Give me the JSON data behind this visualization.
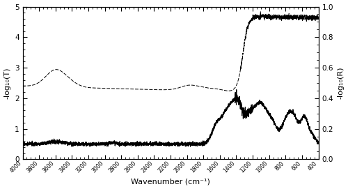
{
  "xlim": [
    4000,
    400
  ],
  "ylim_left": [
    0,
    5
  ],
  "ylim_right": [
    0,
    1
  ],
  "xlabel": "Wavenumber (cm⁻¹)",
  "ylabel_left": "-log₁₀(T)",
  "ylabel_right": "-log₁₀(R)",
  "xticks": [
    4000,
    3800,
    3600,
    3400,
    3200,
    3000,
    2800,
    2600,
    2400,
    2200,
    2000,
    1800,
    1600,
    1400,
    1200,
    1000,
    800,
    600,
    400
  ],
  "xtick_labels": [
    "4000",
    "3800",
    "3600",
    "3400",
    "3200",
    "3000",
    "2800",
    "2600",
    "2400",
    "2200",
    "2000",
    "1800",
    "1600",
    "1400",
    "1200",
    "1000",
    "800",
    "600",
    "400"
  ],
  "yticks_left": [
    0,
    1,
    2,
    3,
    4,
    5
  ],
  "yticks_right": [
    0,
    0.2,
    0.4,
    0.6,
    0.8,
    1.0
  ],
  "background_color": "#ffffff",
  "line_color": "#000000"
}
